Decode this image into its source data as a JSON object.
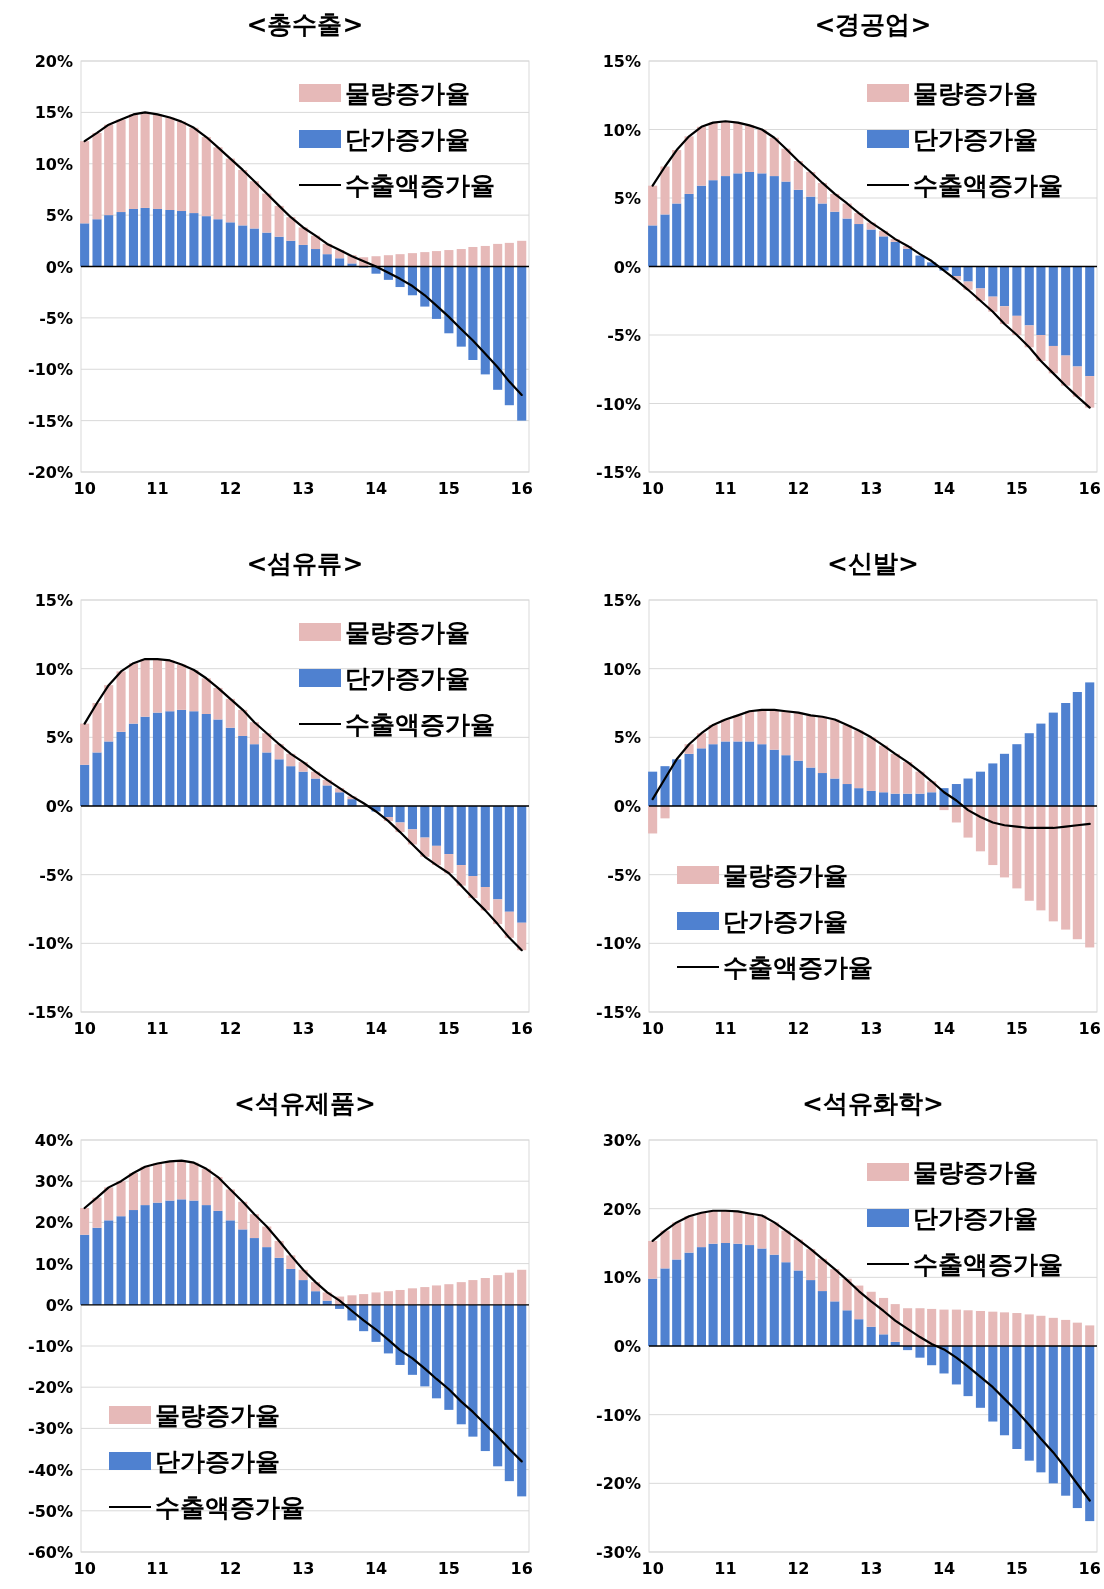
{
  "chart_data": [
    {
      "type": "bar",
      "title": "<총수출>",
      "stacked": true,
      "grid": "y",
      "legend": "top right",
      "xlim": [
        9.95,
        16.1
      ],
      "xticks": [
        10,
        11,
        12,
        13,
        14,
        15,
        16
      ],
      "ylim": [
        -20,
        20
      ],
      "yticks": [
        {
          "value": -20,
          "label": "-20%"
        },
        {
          "value": -15,
          "label": "-15%"
        },
        {
          "value": -10,
          "label": "-10%"
        },
        {
          "value": -5,
          "label": "-5%"
        },
        {
          "value": 0,
          "label": "0%"
        },
        {
          "value": 5,
          "label": "5%"
        },
        {
          "value": 10,
          "label": "10%"
        },
        {
          "value": 15,
          "label": "15%"
        },
        {
          "value": 20,
          "label": "20%"
        }
      ],
      "x": [
        10,
        10.17,
        10.33,
        10.5,
        10.67,
        10.83,
        11,
        11.17,
        11.33,
        11.5,
        11.67,
        11.83,
        12,
        12.17,
        12.33,
        12.5,
        12.67,
        12.83,
        13,
        13.17,
        13.33,
        13.5,
        13.67,
        13.83,
        14,
        14.17,
        14.33,
        14.5,
        14.67,
        14.83,
        15,
        15.17,
        15.33,
        15.5,
        15.67,
        15.83,
        16
      ],
      "series": [
        {
          "name": "단가증가율",
          "color": "#4f81d0",
          "values": [
            4.2,
            4.6,
            5.0,
            5.3,
            5.6,
            5.7,
            5.6,
            5.5,
            5.4,
            5.2,
            4.9,
            4.6,
            4.3,
            4.0,
            3.7,
            3.3,
            2.9,
            2.5,
            2.1,
            1.7,
            1.2,
            0.8,
            0.3,
            -0.1,
            -0.7,
            -1.3,
            -2.0,
            -2.8,
            -3.9,
            -5.1,
            -6.5,
            -7.8,
            -9.1,
            -10.5,
            -12.0,
            -13.5,
            -15.0
          ]
        },
        {
          "name": "물량증가율",
          "color": "#e6b9b8",
          "values": [
            8.0,
            8.4,
            8.8,
            9.0,
            9.2,
            9.3,
            9.2,
            9.0,
            8.7,
            8.3,
            7.7,
            7.0,
            6.2,
            5.4,
            4.6,
            3.8,
            3.0,
            2.3,
            1.7,
            1.3,
            1.0,
            0.8,
            0.8,
            0.9,
            1.0,
            1.1,
            1.2,
            1.3,
            1.4,
            1.5,
            1.6,
            1.7,
            1.9,
            2.0,
            2.2,
            2.3,
            2.5
          ]
        },
        {
          "name": "수출액증가율",
          "type": "line",
          "color": "#000000",
          "values": [
            12.2,
            13.0,
            13.8,
            14.3,
            14.8,
            15.0,
            14.8,
            14.5,
            14.1,
            13.5,
            12.6,
            11.6,
            10.5,
            9.4,
            8.3,
            7.1,
            5.9,
            4.8,
            3.8,
            3.0,
            2.2,
            1.6,
            1.0,
            0.5,
            0.0,
            -0.6,
            -1.2,
            -1.9,
            -2.8,
            -3.8,
            -4.9,
            -6.1,
            -7.2,
            -8.5,
            -9.8,
            -11.2,
            -12.5
          ]
        }
      ]
    },
    {
      "type": "bar",
      "title": "<경공업>",
      "stacked": true,
      "grid": "y",
      "legend": "top right",
      "xlim": [
        9.95,
        16.1
      ],
      "xticks": [
        10,
        11,
        12,
        13,
        14,
        15,
        16
      ],
      "ylim": [
        -15,
        15
      ],
      "yticks": [
        {
          "value": -15,
          "label": "-15%"
        },
        {
          "value": -10,
          "label": "-10%"
        },
        {
          "value": -5,
          "label": "-5%"
        },
        {
          "value": 0,
          "label": "0%"
        },
        {
          "value": 5,
          "label": "5%"
        },
        {
          "value": 10,
          "label": "10%"
        },
        {
          "value": 15,
          "label": "15%"
        }
      ],
      "x": [
        10,
        10.17,
        10.33,
        10.5,
        10.67,
        10.83,
        11,
        11.17,
        11.33,
        11.5,
        11.67,
        11.83,
        12,
        12.17,
        12.33,
        12.5,
        12.67,
        12.83,
        13,
        13.17,
        13.33,
        13.5,
        13.67,
        13.83,
        14,
        14.17,
        14.33,
        14.5,
        14.67,
        14.83,
        15,
        15.17,
        15.33,
        15.5,
        15.67,
        15.83,
        16
      ],
      "series": [
        {
          "name": "단가증가율",
          "color": "#4f81d0",
          "values": [
            3.0,
            3.8,
            4.6,
            5.3,
            5.9,
            6.3,
            6.6,
            6.8,
            6.9,
            6.8,
            6.6,
            6.2,
            5.6,
            5.1,
            4.6,
            4.0,
            3.5,
            3.1,
            2.7,
            2.2,
            1.8,
            1.3,
            0.8,
            0.3,
            -0.3,
            -0.7,
            -1.1,
            -1.6,
            -2.2,
            -2.9,
            -3.6,
            -4.3,
            -5.0,
            -5.8,
            -6.5,
            -7.3,
            -8.0
          ]
        },
        {
          "name": "물량증가율",
          "color": "#e6b9b8",
          "values": [
            2.9,
            3.5,
            3.9,
            4.2,
            4.3,
            4.2,
            4.0,
            3.7,
            3.4,
            3.2,
            2.8,
            2.4,
            2.1,
            1.8,
            1.5,
            1.3,
            1.1,
            0.8,
            0.5,
            0.4,
            0.2,
            0.2,
            null,
            null,
            0,
            -0.3,
            -0.6,
            -0.9,
            -1.1,
            -1.3,
            -1.4,
            -1.6,
            -1.9,
            -2.0,
            -2.2,
            -2.2,
            -2.3
          ]
        },
        {
          "name": "수출액증가율",
          "type": "line",
          "color": "#000000",
          "values": [
            5.9,
            7.3,
            8.5,
            9.5,
            10.2,
            10.5,
            10.6,
            10.5,
            10.3,
            10.0,
            9.4,
            8.6,
            7.7,
            6.9,
            6.1,
            5.3,
            4.6,
            3.9,
            3.2,
            2.6,
            2.0,
            1.5,
            0.9,
            0.4,
            -0.3,
            -1.0,
            -1.7,
            -2.5,
            -3.3,
            -4.2,
            -5.0,
            -5.9,
            -6.9,
            -7.8,
            -8.7,
            -9.5,
            -10.3
          ]
        }
      ]
    },
    {
      "type": "bar",
      "title": "<섬유류>",
      "stacked": true,
      "grid": "y",
      "legend": "top right",
      "xlim": [
        9.95,
        16.1
      ],
      "xticks": [
        10,
        11,
        12,
        13,
        14,
        15,
        16
      ],
      "ylim": [
        -15,
        15
      ],
      "yticks": [
        {
          "value": -15,
          "label": "-15%"
        },
        {
          "value": -10,
          "label": "-10%"
        },
        {
          "value": -5,
          "label": "-5%"
        },
        {
          "value": 0,
          "label": "0%"
        },
        {
          "value": 5,
          "label": "5%"
        },
        {
          "value": 10,
          "label": "10%"
        },
        {
          "value": 15,
          "label": "15%"
        }
      ],
      "x": [
        10,
        10.17,
        10.33,
        10.5,
        10.67,
        10.83,
        11,
        11.17,
        11.33,
        11.5,
        11.67,
        11.83,
        12,
        12.17,
        12.33,
        12.5,
        12.67,
        12.83,
        13,
        13.17,
        13.33,
        13.5,
        13.67,
        13.83,
        14,
        14.17,
        14.33,
        14.5,
        14.67,
        14.83,
        15,
        15.17,
        15.33,
        15.5,
        15.67,
        15.83,
        16
      ],
      "series": [
        {
          "name": "단가증가율",
          "color": "#4f81d0",
          "values": [
            3.0,
            3.9,
            4.7,
            5.4,
            6.0,
            6.5,
            6.8,
            6.9,
            7.0,
            6.9,
            6.7,
            6.3,
            5.7,
            5.1,
            4.5,
            3.9,
            3.4,
            2.9,
            2.5,
            2.0,
            1.5,
            1.0,
            0.5,
            0.0,
            -0.4,
            -0.8,
            -1.2,
            -1.7,
            -2.3,
            -2.9,
            -3.5,
            -4.3,
            -5.1,
            -5.9,
            -6.8,
            -7.7,
            -8.5
          ]
        },
        {
          "name": "물량증가율",
          "color": "#e6b9b8",
          "values": [
            3.0,
            3.6,
            4.1,
            4.4,
            4.4,
            4.2,
            3.9,
            3.7,
            3.3,
            3.0,
            2.6,
            2.3,
            2.1,
            1.9,
            1.6,
            1.4,
            1.1,
            0.9,
            0.7,
            0.5,
            0.4,
            0.3,
            0.2,
            null,
            0,
            -0.3,
            -0.7,
            -1.1,
            -1.4,
            -1.4,
            -1.4,
            -1.5,
            -1.6,
            -1.7,
            -1.8,
            -1.9,
            -2.0
          ]
        },
        {
          "name": "수출액증가율",
          "type": "line",
          "color": "#000000",
          "values": [
            6.0,
            7.5,
            8.8,
            9.8,
            10.4,
            10.7,
            10.7,
            10.6,
            10.3,
            9.9,
            9.3,
            8.6,
            7.8,
            7.0,
            6.1,
            5.3,
            4.5,
            3.8,
            3.2,
            2.5,
            1.9,
            1.3,
            0.7,
            0.2,
            -0.4,
            -1.1,
            -1.9,
            -2.8,
            -3.7,
            -4.3,
            -4.9,
            -5.8,
            -6.7,
            -7.6,
            -8.6,
            -9.6,
            -10.5
          ]
        }
      ]
    },
    {
      "type": "bar",
      "title": "<신발>",
      "stacked": true,
      "grid": "y",
      "legend": "bottom left",
      "xlim": [
        9.95,
        16.1
      ],
      "xticks": [
        10,
        11,
        12,
        13,
        14,
        15,
        16
      ],
      "ylim": [
        -15,
        15
      ],
      "yticks": [
        {
          "value": -15,
          "label": "-15%"
        },
        {
          "value": -10,
          "label": "-10%"
        },
        {
          "value": -5,
          "label": "-5%"
        },
        {
          "value": 0,
          "label": "0%"
        },
        {
          "value": 5,
          "label": "5%"
        },
        {
          "value": 10,
          "label": "10%"
        },
        {
          "value": 15,
          "label": "15%"
        }
      ],
      "x": [
        10,
        10.17,
        10.33,
        10.5,
        10.67,
        10.83,
        11,
        11.17,
        11.33,
        11.5,
        11.67,
        11.83,
        12,
        12.17,
        12.33,
        12.5,
        12.67,
        12.83,
        13,
        13.17,
        13.33,
        13.5,
        13.67,
        13.83,
        14,
        14.17,
        14.33,
        14.5,
        14.67,
        14.83,
        15,
        15.17,
        15.33,
        15.5,
        15.67,
        15.83,
        16
      ],
      "series": [
        {
          "name": "단가증가율",
          "color": "#4f81d0",
          "values": [
            2.5,
            2.9,
            3.4,
            3.8,
            4.2,
            4.5,
            4.7,
            4.7,
            4.7,
            4.5,
            4.1,
            3.7,
            3.3,
            2.8,
            2.4,
            2.0,
            1.6,
            1.3,
            1.1,
            1.0,
            0.9,
            0.9,
            0.9,
            1.0,
            1.3,
            1.6,
            2.0,
            2.5,
            3.1,
            3.8,
            4.5,
            5.3,
            6.0,
            6.8,
            7.5,
            8.3,
            9.0
          ]
        },
        {
          "name": "물량증가율",
          "color": "#e6b9b8",
          "values": [
            -2.0,
            -0.9,
            0.0,
            0.7,
            1.1,
            1.4,
            1.6,
            1.9,
            2.2,
            2.5,
            2.9,
            3.2,
            3.5,
            3.8,
            4.1,
            4.3,
            4.3,
            4.2,
            3.9,
            3.4,
            2.9,
            2.3,
            1.6,
            0.8,
            -0.3,
            -1.2,
            -2.3,
            -3.3,
            -4.3,
            -5.2,
            -6.0,
            -6.9,
            -7.6,
            -8.4,
            -9.0,
            -9.7,
            -10.3
          ]
        },
        {
          "name": "수출액증가율",
          "type": "line",
          "color": "#000000",
          "values": [
            0.5,
            2.0,
            3.4,
            4.5,
            5.3,
            5.9,
            6.3,
            6.6,
            6.9,
            7.0,
            7.0,
            6.9,
            6.8,
            6.6,
            6.5,
            6.3,
            5.9,
            5.5,
            5.0,
            4.4,
            3.8,
            3.2,
            2.5,
            1.8,
            1.0,
            0.4,
            -0.3,
            -0.8,
            -1.2,
            -1.4,
            -1.5,
            -1.6,
            -1.6,
            -1.6,
            -1.5,
            -1.4,
            -1.3
          ]
        }
      ]
    },
    {
      "type": "bar",
      "title": "<석유제품>",
      "stacked": true,
      "grid": "y",
      "legend": "bottom left",
      "xlim": [
        9.95,
        16.1
      ],
      "xticks": [
        10,
        11,
        12,
        13,
        14,
        15,
        16
      ],
      "ylim": [
        -60,
        40
      ],
      "yticks": [
        {
          "value": -60,
          "label": "-60%"
        },
        {
          "value": -50,
          "label": "-50%"
        },
        {
          "value": -40,
          "label": "-40%"
        },
        {
          "value": -30,
          "label": "-30%"
        },
        {
          "value": -20,
          "label": "-20%"
        },
        {
          "value": -10,
          "label": "-10%"
        },
        {
          "value": 0,
          "label": "0%"
        },
        {
          "value": 10,
          "label": "10%"
        },
        {
          "value": 20,
          "label": "20%"
        },
        {
          "value": 30,
          "label": "30%"
        },
        {
          "value": 40,
          "label": "40%"
        }
      ],
      "x": [
        10,
        10.17,
        10.33,
        10.5,
        10.67,
        10.83,
        11,
        11.17,
        11.33,
        11.5,
        11.67,
        11.83,
        12,
        12.17,
        12.33,
        12.5,
        12.67,
        12.83,
        13,
        13.17,
        13.33,
        13.5,
        13.67,
        13.83,
        14,
        14.17,
        14.33,
        14.5,
        14.67,
        14.83,
        15,
        15.17,
        15.33,
        15.5,
        15.67,
        15.83,
        16
      ],
      "series": [
        {
          "name": "단가증가율",
          "color": "#4f81d0",
          "values": [
            17,
            18.7,
            20.5,
            21.5,
            23,
            24.2,
            24.8,
            25.3,
            25.6,
            25.3,
            24.2,
            22.8,
            20.5,
            18.3,
            16.2,
            14,
            11.4,
            8.7,
            6,
            3.3,
            1.0,
            -1,
            -3.8,
            -6.4,
            -9,
            -11.8,
            -14.6,
            -17,
            -19.8,
            -22.7,
            -25.5,
            -29,
            -32,
            -35.5,
            -39.2,
            -42.8,
            -46.5
          ]
        },
        {
          "name": "물량증가율",
          "color": "#e6b9b8",
          "values": [
            6.5,
            7.3,
            8,
            8.5,
            9,
            9.3,
            9.5,
            9.5,
            9.4,
            9.2,
            8.8,
            8.2,
            7.5,
            6.7,
            5.8,
            5,
            4.1,
            3.3,
            2.5,
            2.2,
            2,
            2,
            2.3,
            2.6,
            3,
            3.3,
            3.6,
            4,
            4.3,
            4.7,
            5,
            5.5,
            6,
            6.5,
            7.2,
            7.8,
            8.5
          ]
        },
        {
          "name": "수출액증가율",
          "type": "line",
          "color": "#000000",
          "values": [
            23.5,
            26,
            28.5,
            30,
            32,
            33.5,
            34.3,
            34.8,
            35,
            34.5,
            33,
            31,
            28,
            25,
            22,
            19,
            15.5,
            12,
            8.5,
            5.5,
            3,
            1,
            -1.5,
            -3.8,
            -6,
            -8.5,
            -11,
            -13,
            -15.5,
            -18,
            -20.5,
            -23.5,
            -26,
            -29,
            -32,
            -35,
            -38
          ]
        }
      ]
    },
    {
      "type": "bar",
      "title": "<석유화학>",
      "stacked": true,
      "grid": "y",
      "legend": "top right",
      "xlim": [
        9.95,
        16.1
      ],
      "xticks": [
        10,
        11,
        12,
        13,
        14,
        15,
        16
      ],
      "ylim": [
        -30,
        30
      ],
      "yticks": [
        {
          "value": -30,
          "label": "-30%"
        },
        {
          "value": -20,
          "label": "-20%"
        },
        {
          "value": -10,
          "label": "-10%"
        },
        {
          "value": 0,
          "label": "0%"
        },
        {
          "value": 10,
          "label": "10%"
        },
        {
          "value": 20,
          "label": "20%"
        },
        {
          "value": 30,
          "label": "30%"
        }
      ],
      "x": [
        10,
        10.17,
        10.33,
        10.5,
        10.67,
        10.83,
        11,
        11.17,
        11.33,
        11.5,
        11.67,
        11.83,
        12,
        12.17,
        12.33,
        12.5,
        12.67,
        12.83,
        13,
        13.17,
        13.33,
        13.5,
        13.67,
        13.83,
        14,
        14.17,
        14.33,
        14.5,
        14.67,
        14.83,
        15,
        15.17,
        15.33,
        15.5,
        15.67,
        15.83,
        16
      ],
      "series": [
        {
          "name": "단가증가율",
          "color": "#4f81d0",
          "values": [
            9.8,
            11.3,
            12.6,
            13.6,
            14.4,
            14.9,
            15,
            14.9,
            14.7,
            14.2,
            13.3,
            12.2,
            11,
            9.6,
            8,
            6.5,
            5.2,
            3.9,
            2.8,
            1.7,
            0.6,
            -0.6,
            -1.7,
            -2.8,
            -4,
            -5.6,
            -7.3,
            -9,
            -11,
            -13,
            -15,
            -16.7,
            -18.4,
            -20,
            -21.8,
            -23.6,
            -25.5
          ]
        },
        {
          "name": "물량증가율",
          "color": "#e6b9b8",
          "values": [
            5.5,
            5.5,
            5.4,
            5.3,
            5,
            4.8,
            4.7,
            4.7,
            4.6,
            4.8,
            4.7,
            4.6,
            4.5,
            4.5,
            4.7,
            4.7,
            4.6,
            4.9,
            5.1,
            5.3,
            5.5,
            5.5,
            5.5,
            5.4,
            5.3,
            5.3,
            5.2,
            5.1,
            5,
            4.9,
            4.8,
            4.6,
            4.4,
            4.1,
            3.8,
            3.4,
            3.0
          ]
        },
        {
          "name": "수출액증가율",
          "type": "line",
          "color": "#000000",
          "values": [
            15.3,
            16.8,
            18,
            18.9,
            19.4,
            19.7,
            19.7,
            19.6,
            19.3,
            19,
            18,
            16.8,
            15.5,
            14.1,
            12.7,
            11.2,
            9.6,
            8,
            6.5,
            5.1,
            3.7,
            2.5,
            1.3,
            0.3,
            -0.5,
            -1.7,
            -3,
            -4.5,
            -6,
            -7.7,
            -9.5,
            -11.5,
            -13.5,
            -15.5,
            -17.8,
            -20.1,
            -22.5
          ]
        }
      ]
    }
  ]
}
